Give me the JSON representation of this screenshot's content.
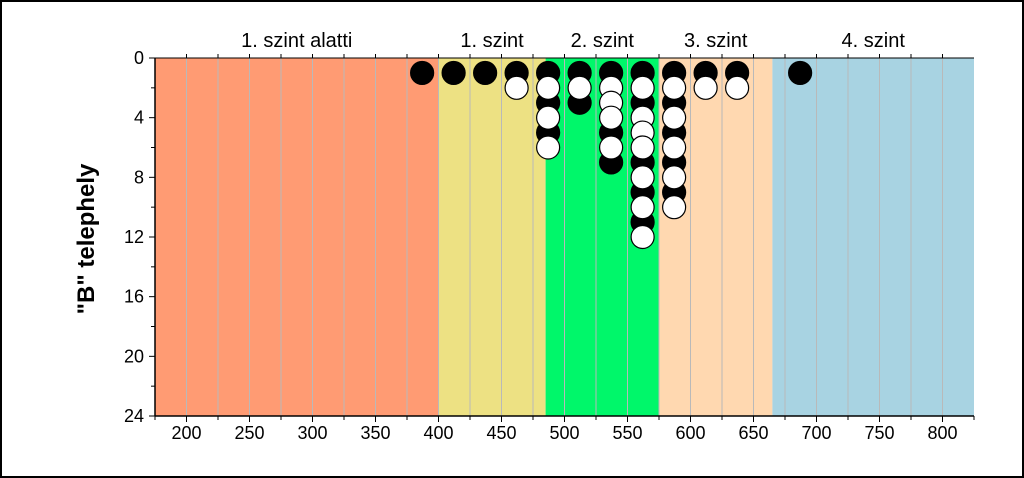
{
  "chart_data": {
    "type": "scatter",
    "ylabel": "\"B\" telephely",
    "xlim": [
      175,
      825
    ],
    "ylim": [
      0,
      24
    ],
    "y_reversed": true,
    "x_ticks": [
      200,
      250,
      300,
      350,
      400,
      450,
      500,
      550,
      600,
      650,
      700,
      750,
      800
    ],
    "y_ticks": [
      0,
      4,
      8,
      12,
      16,
      20,
      24
    ],
    "x_gridlines_every": 25,
    "bands": [
      {
        "label": "1. szint alatti",
        "x_start": 175,
        "x_end": 400,
        "color": "#FF9B73"
      },
      {
        "label": "1. szint",
        "x_start": 400,
        "x_end": 485,
        "color": "#EDE183"
      },
      {
        "label": "2. szint",
        "x_start": 485,
        "x_end": 575,
        "color": "#00F76A"
      },
      {
        "label": "3. szint",
        "x_start": 575,
        "x_end": 665,
        "color": "#FFD8B0"
      },
      {
        "label": "4. szint",
        "x_start": 665,
        "x_end": 825,
        "color": "#A8D3E2"
      }
    ],
    "series": [
      {
        "fill": "#000000",
        "points": [
          [
            387,
            1
          ],
          [
            412,
            1
          ],
          [
            437,
            1
          ],
          [
            462,
            1
          ],
          [
            487,
            1
          ],
          [
            487,
            3
          ],
          [
            487,
            5
          ],
          [
            512,
            1
          ],
          [
            512,
            3
          ],
          [
            537,
            1
          ],
          [
            537,
            5
          ],
          [
            537,
            7
          ],
          [
            562,
            1
          ],
          [
            562,
            3
          ],
          [
            562,
            7
          ],
          [
            562,
            9
          ],
          [
            562,
            11
          ],
          [
            587,
            1
          ],
          [
            587,
            3
          ],
          [
            587,
            5
          ],
          [
            587,
            7
          ],
          [
            587,
            9
          ],
          [
            612,
            1
          ],
          [
            637,
            1
          ],
          [
            687,
            1
          ]
        ]
      },
      {
        "fill": "#ffffff",
        "points": [
          [
            462,
            2
          ],
          [
            487,
            2
          ],
          [
            487,
            4
          ],
          [
            487,
            6
          ],
          [
            512,
            2
          ],
          [
            537,
            2
          ],
          [
            537,
            3
          ],
          [
            537,
            4
          ],
          [
            537,
            6
          ],
          [
            562,
            2
          ],
          [
            562,
            4
          ],
          [
            562,
            5
          ],
          [
            562,
            6
          ],
          [
            562,
            8
          ],
          [
            562,
            10
          ],
          [
            562,
            12
          ],
          [
            587,
            2
          ],
          [
            587,
            4
          ],
          [
            587,
            6
          ],
          [
            587,
            8
          ],
          [
            587,
            10
          ],
          [
            612,
            2
          ],
          [
            637,
            2
          ]
        ]
      }
    ]
  }
}
